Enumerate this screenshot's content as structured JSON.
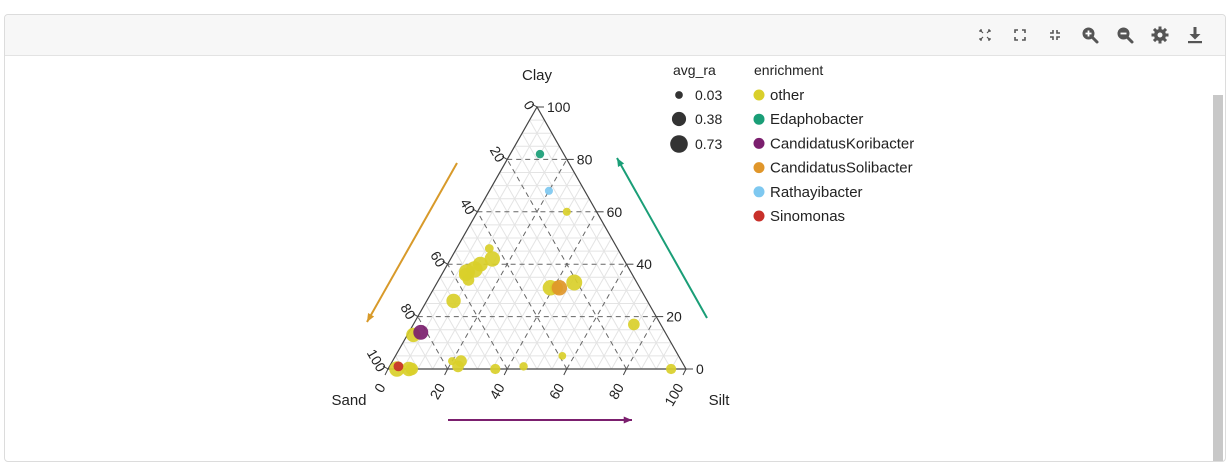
{
  "toolbar": {
    "tools": [
      {
        "name": "autoscale-icon"
      },
      {
        "name": "fullscreen-icon"
      },
      {
        "name": "collapse-icon"
      },
      {
        "name": "zoom-in-icon"
      },
      {
        "name": "zoom-out-icon"
      },
      {
        "name": "settings-gear-icon"
      },
      {
        "name": "download-icon"
      }
    ],
    "icon_color": "#555555"
  },
  "chart_data": {
    "type": "scatter",
    "subtype": "ternary",
    "axes": {
      "top": "Clay",
      "left": "Sand",
      "right": "Silt"
    },
    "ticks": [
      "0",
      "20",
      "40",
      "60",
      "80",
      "100"
    ],
    "grid": true,
    "size_legend": {
      "title": "avg_ra",
      "entries": [
        {
          "label": "0.03",
          "value": 0.03
        },
        {
          "label": "0.38",
          "value": 0.38
        },
        {
          "label": "0.73",
          "value": 0.73
        }
      ]
    },
    "color_legend": {
      "title": "enrichment",
      "entries": [
        {
          "label": "other",
          "color": "#d9cf2a"
        },
        {
          "label": "Edaphobacter",
          "color": "#1a9e77"
        },
        {
          "label": "CandidatusKoribacter",
          "color": "#7b1f6e"
        },
        {
          "label": "CandidatusSolibacter",
          "color": "#e0962a"
        },
        {
          "label": "Rathayibacter",
          "color": "#7ec8f0"
        },
        {
          "label": "Sinomonas",
          "color": "#c8302a"
        }
      ]
    },
    "arrow_colors": {
      "left": "#d89a2a",
      "right": "#1a9e77",
      "bottom": "#7b1f6e"
    },
    "points": [
      {
        "clay": 82,
        "silt": 10,
        "group": "Edaphobacter",
        "avg_ra": 0.05
      },
      {
        "clay": 68,
        "silt": 20,
        "group": "Rathayibacter",
        "avg_ra": 0.04
      },
      {
        "clay": 60,
        "silt": 30,
        "group": "other",
        "avg_ra": 0.04
      },
      {
        "clay": 46,
        "silt": 11,
        "group": "other",
        "avg_ra": 0.06
      },
      {
        "clay": 42,
        "silt": 14,
        "group": "other",
        "avg_ra": 0.5
      },
      {
        "clay": 40,
        "silt": 11,
        "group": "other",
        "avg_ra": 0.45
      },
      {
        "clay": 38,
        "silt": 10,
        "group": "other",
        "avg_ra": 0.6
      },
      {
        "clay": 37,
        "silt": 8,
        "group": "other",
        "avg_ra": 0.55
      },
      {
        "clay": 36,
        "silt": 8,
        "group": "other",
        "avg_ra": 0.3
      },
      {
        "clay": 34,
        "silt": 10,
        "group": "other",
        "avg_ra": 0.2
      },
      {
        "clay": 26,
        "silt": 9,
        "group": "other",
        "avg_ra": 0.4
      },
      {
        "clay": 33,
        "silt": 46,
        "group": "other",
        "avg_ra": 0.55
      },
      {
        "clay": 31,
        "silt": 41,
        "group": "other",
        "avg_ra": 0.3
      },
      {
        "clay": 31,
        "silt": 39,
        "group": "other",
        "avg_ra": 0.5
      },
      {
        "clay": 31,
        "silt": 42,
        "group": "CandidatusSolibacter",
        "avg_ra": 0.5
      },
      {
        "clay": 14,
        "silt": 4,
        "group": "CandidatusKoribacter",
        "avg_ra": 0.45
      },
      {
        "clay": 13,
        "silt": 2,
        "group": "other",
        "avg_ra": 0.4
      },
      {
        "clay": 17,
        "silt": 74,
        "group": "other",
        "avg_ra": 0.2
      },
      {
        "clay": 3,
        "silt": 20,
        "group": "other",
        "avg_ra": 0.04
      },
      {
        "clay": 3,
        "silt": 23,
        "group": "other",
        "avg_ra": 0.2
      },
      {
        "clay": 1,
        "silt": 23,
        "group": "other",
        "avg_ra": 0.2
      },
      {
        "clay": 0,
        "silt": 3,
        "group": "other",
        "avg_ra": 0.5
      },
      {
        "clay": 0,
        "silt": 7,
        "group": "other",
        "avg_ra": 0.4
      },
      {
        "clay": 0,
        "silt": 8,
        "group": "other",
        "avg_ra": 0.25
      },
      {
        "clay": 1,
        "silt": 3,
        "group": "Sinomonas",
        "avg_ra": 0.1
      },
      {
        "clay": 0,
        "silt": 36,
        "group": "other",
        "avg_ra": 0.12
      },
      {
        "clay": 1,
        "silt": 45,
        "group": "other",
        "avg_ra": 0.05
      },
      {
        "clay": 5,
        "silt": 56,
        "group": "other",
        "avg_ra": 0.03
      },
      {
        "clay": 0,
        "silt": 95,
        "group": "other",
        "avg_ra": 0.12
      }
    ]
  }
}
